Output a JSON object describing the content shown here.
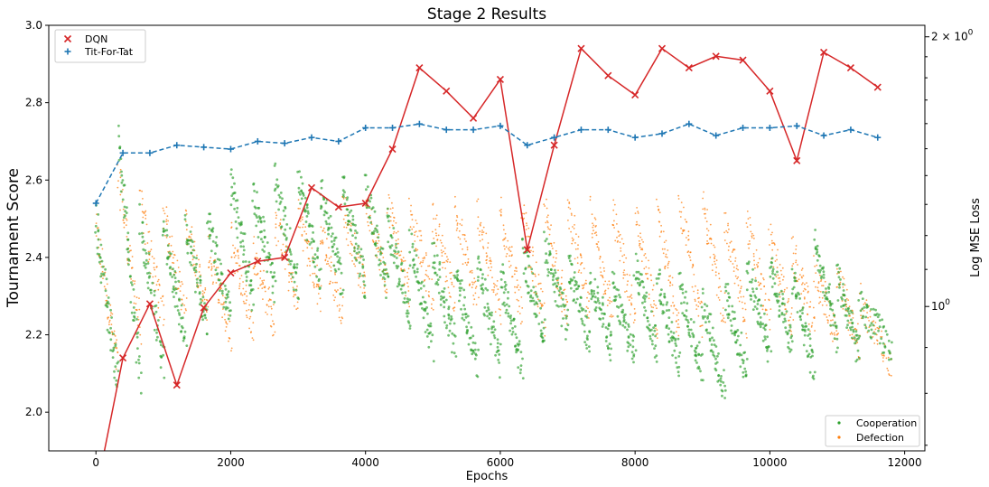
{
  "chart_data": {
    "type": "line",
    "title": "Stage 2 Results",
    "xlabel": "Epochs",
    "ylabel": "Tournament Score",
    "y2label": "Log MSE Loss",
    "xlim": [
      -700,
      12300
    ],
    "ylim": [
      1.9,
      3.0
    ],
    "x_ticks": [
      0,
      2000,
      4000,
      6000,
      8000,
      10000,
      12000
    ],
    "y_ticks": [
      2.0,
      2.2,
      2.4,
      2.6,
      2.8,
      3.0
    ],
    "y2_scale": "log",
    "y2_ticks": [
      {
        "value": 1,
        "label_base": "10",
        "label_exp": "0"
      },
      {
        "value": 2,
        "label_base": "2 × 10",
        "label_exp": "0"
      }
    ],
    "y2lim": [
      0.69,
      2.06
    ],
    "grid": false,
    "legend_top": {
      "placement": "upper left",
      "entries": [
        "DQN",
        "Tit-For-Tat"
      ]
    },
    "legend_bottom": {
      "placement": "lower right",
      "entries": [
        "Cooperation",
        "Defection"
      ]
    },
    "series": [
      {
        "name": "DQN",
        "axis": "left",
        "color": "#d62728",
        "marker": "x",
        "x": [
          0,
          400,
          800,
          1200,
          1600,
          2000,
          2400,
          2800,
          3200,
          3600,
          4000,
          4400,
          4800,
          5200,
          5600,
          6000,
          6400,
          6800,
          7200,
          7600,
          8000,
          8400,
          8800,
          9200,
          9600,
          10000,
          10400,
          10800,
          11200,
          11600
        ],
        "values": [
          1.79,
          2.14,
          2.28,
          2.07,
          2.27,
          2.36,
          2.39,
          2.4,
          2.58,
          2.53,
          2.54,
          2.68,
          2.89,
          2.83,
          2.76,
          2.86,
          2.42,
          2.69,
          2.94,
          2.87,
          2.82,
          2.94,
          2.89,
          2.92,
          2.91,
          2.83,
          2.65,
          2.93,
          2.89,
          2.84
        ]
      },
      {
        "name": "Tit-For-Tat",
        "axis": "left",
        "color": "#1f77b4",
        "marker": "+",
        "linestyle": "dashed",
        "x": [
          0,
          400,
          800,
          1200,
          1600,
          2000,
          2400,
          2800,
          3200,
          3600,
          4000,
          4400,
          4800,
          5200,
          5600,
          6000,
          6400,
          6800,
          7200,
          7600,
          8000,
          8400,
          8800,
          9200,
          9600,
          10000,
          10400,
          10800,
          11200,
          11600
        ],
        "values": [
          2.54,
          2.67,
          2.67,
          2.69,
          2.685,
          2.68,
          2.7,
          2.695,
          2.71,
          2.7,
          2.735,
          2.735,
          2.745,
          2.73,
          2.73,
          2.74,
          2.69,
          2.71,
          2.73,
          2.73,
          2.71,
          2.72,
          2.745,
          2.715,
          2.735,
          2.735,
          2.74,
          2.715,
          2.73,
          2.71
        ]
      },
      {
        "name": "Cooperation",
        "axis": "right",
        "color": "#2ca02c",
        "marker": "dot",
        "segments": [
          {
            "x0": 0,
            "x1": 330,
            "y0": 1.25,
            "y1": 0.82
          },
          {
            "x0": 330,
            "x1": 660,
            "y0": 1.55,
            "y1": 0.82
          },
          {
            "x0": 660,
            "x1": 1000,
            "y0": 1.25,
            "y1": 0.86
          },
          {
            "x0": 1000,
            "x1": 1330,
            "y0": 1.22,
            "y1": 0.92
          },
          {
            "x0": 1330,
            "x1": 1660,
            "y0": 1.24,
            "y1": 0.95
          },
          {
            "x0": 1660,
            "x1": 2000,
            "y0": 1.25,
            "y1": 0.97
          },
          {
            "x0": 2000,
            "x1": 2330,
            "y0": 1.38,
            "y1": 1.02
          },
          {
            "x0": 2330,
            "x1": 2660,
            "y0": 1.35,
            "y1": 1.04
          },
          {
            "x0": 2660,
            "x1": 3000,
            "y0": 1.38,
            "y1": 1.05
          },
          {
            "x0": 3000,
            "x1": 3330,
            "y0": 1.38,
            "y1": 1.08
          },
          {
            "x0": 3330,
            "x1": 3660,
            "y0": 1.36,
            "y1": 1.06
          },
          {
            "x0": 3660,
            "x1": 4000,
            "y0": 1.37,
            "y1": 1.05
          },
          {
            "x0": 4000,
            "x1": 4330,
            "y0": 1.36,
            "y1": 1.04
          },
          {
            "x0": 4330,
            "x1": 4660,
            "y0": 1.25,
            "y1": 0.97
          },
          {
            "x0": 4660,
            "x1": 5000,
            "y0": 1.18,
            "y1": 0.9
          },
          {
            "x0": 5000,
            "x1": 5330,
            "y0": 1.15,
            "y1": 0.9
          },
          {
            "x0": 5330,
            "x1": 5660,
            "y0": 1.1,
            "y1": 0.86
          },
          {
            "x0": 5660,
            "x1": 6000,
            "y0": 1.1,
            "y1": 0.87
          },
          {
            "x0": 6000,
            "x1": 6330,
            "y0": 1.08,
            "y1": 0.86
          },
          {
            "x0": 6330,
            "x1": 6660,
            "y0": 1.15,
            "y1": 0.92
          },
          {
            "x0": 6660,
            "x1": 7000,
            "y0": 1.18,
            "y1": 0.94
          },
          {
            "x0": 7000,
            "x1": 7330,
            "y0": 1.12,
            "y1": 0.91
          },
          {
            "x0": 7330,
            "x1": 7660,
            "y0": 1.08,
            "y1": 0.9
          },
          {
            "x0": 7660,
            "x1": 8000,
            "y0": 1.05,
            "y1": 0.88
          },
          {
            "x0": 8000,
            "x1": 8330,
            "y0": 1.12,
            "y1": 0.9
          },
          {
            "x0": 8330,
            "x1": 8660,
            "y0": 1.08,
            "y1": 0.86
          },
          {
            "x0": 8660,
            "x1": 9000,
            "y0": 1.05,
            "y1": 0.85
          },
          {
            "x0": 9000,
            "x1": 9330,
            "y0": 1.02,
            "y1": 0.8
          },
          {
            "x0": 9330,
            "x1": 9660,
            "y0": 1.04,
            "y1": 0.84
          },
          {
            "x0": 9660,
            "x1": 10000,
            "y0": 1.1,
            "y1": 0.9
          },
          {
            "x0": 10000,
            "x1": 10330,
            "y0": 1.12,
            "y1": 0.9
          },
          {
            "x0": 10330,
            "x1": 10660,
            "y0": 1.08,
            "y1": 0.85
          },
          {
            "x0": 10660,
            "x1": 11000,
            "y0": 1.18,
            "y1": 0.92
          },
          {
            "x0": 11000,
            "x1": 11330,
            "y0": 1.08,
            "y1": 0.88
          },
          {
            "x0": 11330,
            "x1": 11800,
            "y0": 1.0,
            "y1": 0.9
          }
        ]
      },
      {
        "name": "Defection",
        "axis": "right",
        "color": "#ff7f0e",
        "marker": "dot",
        "segments": [
          {
            "x0": 0,
            "x1": 330,
            "y0": 1.22,
            "y1": 0.86
          },
          {
            "x0": 330,
            "x1": 660,
            "y0": 1.4,
            "y1": 0.94
          },
          {
            "x0": 660,
            "x1": 1000,
            "y0": 1.3,
            "y1": 0.98
          },
          {
            "x0": 1000,
            "x1": 1330,
            "y0": 1.28,
            "y1": 0.98
          },
          {
            "x0": 1330,
            "x1": 1660,
            "y0": 1.26,
            "y1": 0.98
          },
          {
            "x0": 1660,
            "x1": 2000,
            "y0": 1.16,
            "y1": 0.92
          },
          {
            "x0": 2000,
            "x1": 2330,
            "y0": 1.2,
            "y1": 0.94
          },
          {
            "x0": 2330,
            "x1": 2660,
            "y0": 1.16,
            "y1": 0.95
          },
          {
            "x0": 2660,
            "x1": 3000,
            "y0": 1.25,
            "y1": 1.0
          },
          {
            "x0": 3000,
            "x1": 3330,
            "y0": 1.28,
            "y1": 1.02
          },
          {
            "x0": 3330,
            "x1": 3660,
            "y0": 1.22,
            "y1": 0.98
          },
          {
            "x0": 3660,
            "x1": 4000,
            "y0": 1.3,
            "y1": 1.04
          },
          {
            "x0": 4000,
            "x1": 4330,
            "y0": 1.32,
            "y1": 1.05
          },
          {
            "x0": 4330,
            "x1": 4660,
            "y0": 1.3,
            "y1": 1.04
          },
          {
            "x0": 4660,
            "x1": 5000,
            "y0": 1.28,
            "y1": 1.02
          },
          {
            "x0": 5000,
            "x1": 5330,
            "y0": 1.26,
            "y1": 1.02
          },
          {
            "x0": 5330,
            "x1": 5660,
            "y0": 1.28,
            "y1": 1.0
          },
          {
            "x0": 5660,
            "x1": 6000,
            "y0": 1.28,
            "y1": 0.98
          },
          {
            "x0": 6000,
            "x1": 6330,
            "y0": 1.28,
            "y1": 0.98
          },
          {
            "x0": 6330,
            "x1": 6660,
            "y0": 1.26,
            "y1": 0.96
          },
          {
            "x0": 6660,
            "x1": 7000,
            "y0": 1.28,
            "y1": 0.97
          },
          {
            "x0": 7000,
            "x1": 7330,
            "y0": 1.3,
            "y1": 0.98
          },
          {
            "x0": 7330,
            "x1": 7660,
            "y0": 1.28,
            "y1": 0.98
          },
          {
            "x0": 7660,
            "x1": 8000,
            "y0": 1.28,
            "y1": 0.96
          },
          {
            "x0": 8000,
            "x1": 8330,
            "y0": 1.28,
            "y1": 0.95
          },
          {
            "x0": 8330,
            "x1": 8660,
            "y0": 1.26,
            "y1": 0.95
          },
          {
            "x0": 8660,
            "x1": 9000,
            "y0": 1.3,
            "y1": 0.96
          },
          {
            "x0": 9000,
            "x1": 9330,
            "y0": 1.3,
            "y1": 0.98
          },
          {
            "x0": 9330,
            "x1": 9660,
            "y0": 1.24,
            "y1": 0.96
          },
          {
            "x0": 9660,
            "x1": 10000,
            "y0": 1.24,
            "y1": 0.96
          },
          {
            "x0": 10000,
            "x1": 10330,
            "y0": 1.2,
            "y1": 0.95
          },
          {
            "x0": 10330,
            "x1": 10660,
            "y0": 1.15,
            "y1": 0.95
          },
          {
            "x0": 10660,
            "x1": 11000,
            "y0": 1.1,
            "y1": 0.92
          },
          {
            "x0": 11000,
            "x1": 11330,
            "y0": 1.08,
            "y1": 0.9
          },
          {
            "x0": 11330,
            "x1": 11800,
            "y0": 1.02,
            "y1": 0.86
          }
        ]
      }
    ]
  }
}
